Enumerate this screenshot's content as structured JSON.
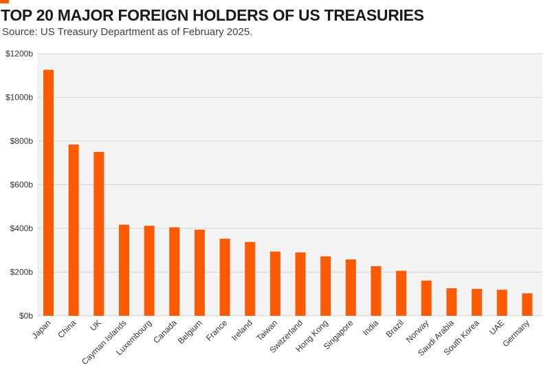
{
  "colors": {
    "accent": "#fc5a03",
    "bar": "#fc5a03",
    "plot_background": "#f3f3f3",
    "gridline": "#d6d6d6"
  },
  "chart_data": {
    "type": "bar",
    "title": "TOP 20 MAJOR FOREIGN HOLDERS OF US TREASURIES",
    "subtitle": "Source: US Treasury Department as of February 2025.",
    "xlabel": "",
    "ylabel": "",
    "ylim": [
      0,
      1200
    ],
    "yticks": [
      0,
      200,
      400,
      600,
      800,
      1000,
      1200
    ],
    "ytick_labels": [
      "$0b",
      "$200b",
      "$400b",
      "$600b",
      "$800b",
      "$1000b",
      "$1200b"
    ],
    "grid": true,
    "legend": "none",
    "categories": [
      "Japan",
      "China",
      "UK",
      "Cayman Islands",
      "Luxembourg",
      "Canada",
      "Belgium",
      "France",
      "Ireland",
      "Taiwan",
      "Switzerland",
      "Hong Kong",
      "Singapore",
      "India",
      "Brazil",
      "Norway",
      "Saudi Arabia",
      "South Korea",
      "UAE",
      "Germany"
    ],
    "values": [
      1126,
      784,
      750,
      417,
      412,
      405,
      394,
      353,
      338,
      294,
      290,
      272,
      258,
      227,
      206,
      161,
      126,
      123,
      119,
      103
    ]
  }
}
